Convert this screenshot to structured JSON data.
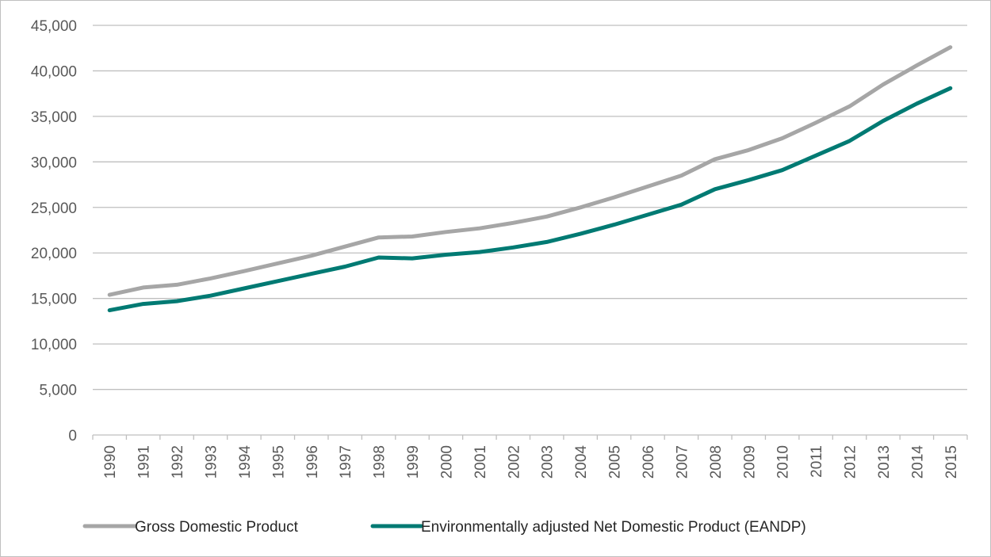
{
  "chart_data": {
    "type": "line",
    "title": "",
    "xlabel": "",
    "ylabel": "",
    "categories": [
      "1990",
      "1991",
      "1992",
      "1993",
      "1994",
      "1995",
      "1996",
      "1997",
      "1998",
      "1999",
      "2000",
      "2001",
      "2002",
      "2003",
      "2004",
      "2005",
      "2006",
      "2007",
      "2008",
      "2009",
      "2010",
      "2011",
      "2012",
      "2013",
      "2014",
      "2015"
    ],
    "ylim": [
      0,
      45000
    ],
    "yticks": [
      0,
      5000,
      10000,
      15000,
      20000,
      25000,
      30000,
      35000,
      40000,
      45000
    ],
    "ytick_labels": [
      "0",
      "5,000",
      "10,000",
      "15,000",
      "20,000",
      "25,000",
      "30,000",
      "35,000",
      "40,000",
      "45,000"
    ],
    "grid": "horizontal",
    "legend_position": "bottom",
    "series": [
      {
        "name": "Gross Domestic Product",
        "color": "#a6a6a6",
        "values": [
          15400,
          16200,
          16500,
          17200,
          18000,
          18850,
          19700,
          20700,
          21700,
          21800,
          22300,
          22700,
          23300,
          24000,
          25000,
          26100,
          27300,
          28500,
          30300,
          31300,
          32600,
          34300,
          36100,
          38500,
          40600,
          42600
        ]
      },
      {
        "name": "Environmentally adjusted Net Domestic Product (EANDP)",
        "color": "#007a73",
        "values": [
          13700,
          14400,
          14700,
          15300,
          16100,
          16900,
          17700,
          18500,
          19500,
          19400,
          19800,
          20100,
          20600,
          21200,
          22100,
          23100,
          24200,
          25300,
          27000,
          28000,
          29100,
          30700,
          32300,
          34500,
          36400,
          38100
        ]
      }
    ]
  }
}
